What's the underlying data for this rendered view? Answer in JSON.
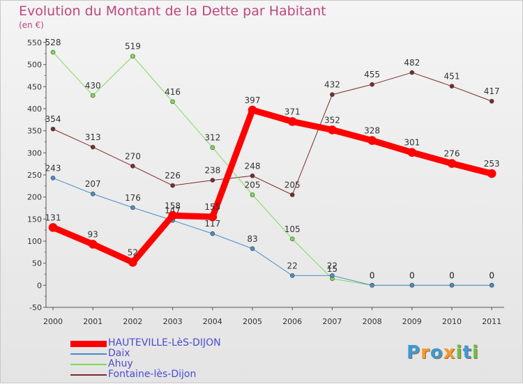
{
  "title": "Evolution du Montant de la Dette par Habitant",
  "subtitle": "(en €)",
  "logo": {
    "text": "Proxiti",
    "letters": [
      {
        "ch": "P",
        "color": "#3a9ad9"
      },
      {
        "ch": "r",
        "color": "#f29a2e"
      },
      {
        "ch": "o",
        "color": "#3a9ad9"
      },
      {
        "ch": "x",
        "color": "#f29a2e"
      },
      {
        "ch": "i",
        "color": "#6cc04a"
      },
      {
        "ch": "t",
        "color": "#3a9ad9"
      },
      {
        "ch": "i",
        "color": "#6cc04a"
      }
    ]
  },
  "chart_data": {
    "type": "line",
    "title": "Evolution du Montant de la Dette par Habitant",
    "subtitle": "(en €)",
    "x": [
      "2000",
      "2001",
      "2002",
      "2003",
      "2004",
      "2005",
      "2006",
      "2007",
      "2008",
      "2009",
      "2010",
      "2011"
    ],
    "ylim": [
      -50,
      550
    ],
    "yticks": [
      -50,
      0,
      50,
      100,
      150,
      200,
      250,
      300,
      350,
      400,
      450,
      500,
      550
    ],
    "grid": false,
    "legend_position": "bottom-left",
    "series": [
      {
        "name": "Fontaine-lès-Dijon",
        "color": "#7a2a2a",
        "width": 1,
        "values": [
          354,
          313,
          270,
          226,
          238,
          248,
          205,
          432,
          455,
          482,
          451,
          417
        ],
        "labels": [
          "354",
          "313",
          "270",
          "226",
          "238",
          "248",
          "205",
          "432",
          "455",
          "482",
          "451",
          "417"
        ]
      },
      {
        "name": "Ahuy",
        "color": "#7ed957",
        "width": 1,
        "values": [
          528,
          430,
          519,
          416,
          312,
          205,
          105,
          15,
          0,
          0,
          0,
          0
        ],
        "labels": [
          "528",
          "430",
          "519",
          "416",
          "312",
          "205",
          "105",
          "15",
          "0",
          "0",
          "0",
          "0"
        ]
      },
      {
        "name": "Daix",
        "color": "#4a8cc8",
        "width": 1,
        "values": [
          243,
          207,
          176,
          147,
          117,
          83,
          22,
          22,
          0,
          0,
          0,
          0
        ],
        "labels": [
          "243",
          "207",
          "176",
          "147",
          "117",
          "83",
          "22",
          "22",
          "0",
          "0",
          "0",
          "0"
        ]
      },
      {
        "name": "HAUTEVILLE-LèS-DIJON",
        "color": "#ff0000",
        "width": 9,
        "values": [
          131,
          93,
          52,
          158,
          155,
          397,
          371,
          352,
          328,
          301,
          276,
          253
        ],
        "labels": [
          "131",
          "93",
          "52",
          "158",
          "155",
          "397",
          "371",
          "352",
          "328",
          "301",
          "276",
          "253"
        ]
      }
    ],
    "legend": [
      {
        "name": "HAUTEVILLE-LèS-DIJON",
        "color": "#ff0000",
        "width": 9
      },
      {
        "name": "Daix",
        "color": "#4a8cc8",
        "width": 1
      },
      {
        "name": "Ahuy",
        "color": "#7ed957",
        "width": 1
      },
      {
        "name": "Fontaine-lès-Dijon",
        "color": "#7a2a2a",
        "width": 1
      }
    ]
  }
}
